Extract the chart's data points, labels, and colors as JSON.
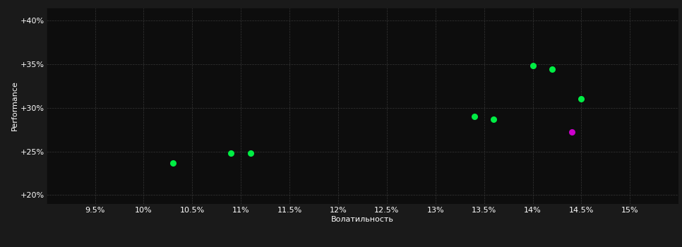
{
  "background_color": "#1a1a1a",
  "plot_bg_color": "#0d0d0d",
  "grid_color": "#3a3a3a",
  "xlabel": "Волатильность",
  "ylabel": "Performance",
  "xlim": [
    0.09,
    0.155
  ],
  "ylim": [
    0.19,
    0.415
  ],
  "xticks": [
    0.095,
    0.1,
    0.105,
    0.11,
    0.115,
    0.12,
    0.125,
    0.13,
    0.135,
    0.14,
    0.145,
    0.15
  ],
  "xtick_labels": [
    "9.5%",
    "10%",
    "10.5%",
    "11%",
    "11.5%",
    "12%",
    "12.5%",
    "13%",
    "13.5%",
    "14%",
    "14.5%",
    "15%"
  ],
  "yticks": [
    0.2,
    0.25,
    0.3,
    0.35,
    0.4
  ],
  "ytick_labels": [
    "+20%",
    "+25%",
    "+30%",
    "+35%",
    "+40%"
  ],
  "green_points": [
    [
      0.103,
      0.237
    ],
    [
      0.109,
      0.248
    ],
    [
      0.111,
      0.248
    ],
    [
      0.134,
      0.29
    ],
    [
      0.136,
      0.287
    ],
    [
      0.14,
      0.348
    ],
    [
      0.142,
      0.344
    ],
    [
      0.145,
      0.31
    ]
  ],
  "magenta_points": [
    [
      0.144,
      0.272
    ]
  ],
  "point_size": 30,
  "green_color": "#00ee44",
  "magenta_color": "#cc00cc",
  "axis_label_fontsize": 8,
  "tick_fontsize": 8
}
